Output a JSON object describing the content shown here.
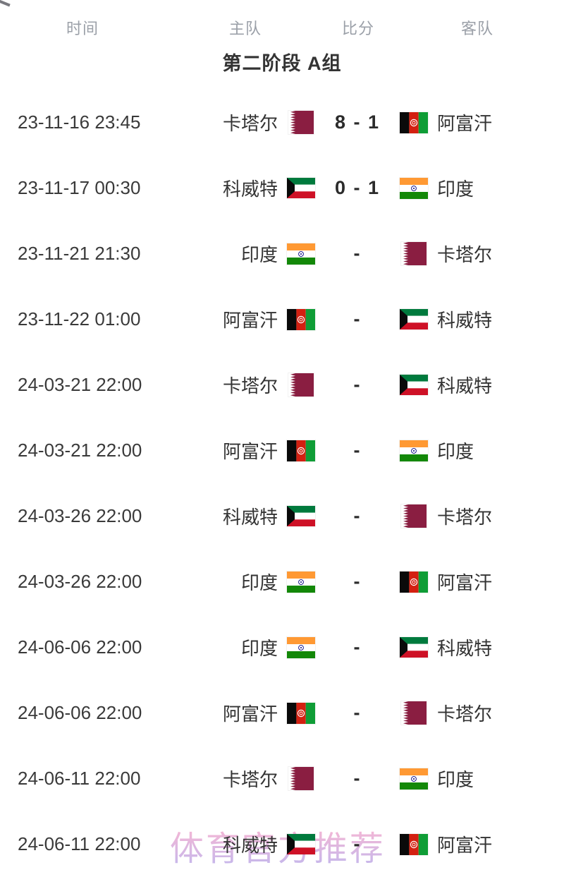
{
  "header": {
    "columns": [
      "时间",
      "主队",
      "比分",
      "客队"
    ]
  },
  "section": {
    "title": "第二阶段 A组"
  },
  "matches": [
    {
      "time": "23-11-16 23:45",
      "home": {
        "name": "卡塔尔",
        "flag": "qatar"
      },
      "score": "8 - 1",
      "away": {
        "name": "阿富汗",
        "flag": "afghanistan"
      }
    },
    {
      "time": "23-11-17 00:30",
      "home": {
        "name": "科威特",
        "flag": "kuwait"
      },
      "score": "0 - 1",
      "away": {
        "name": "印度",
        "flag": "india"
      }
    },
    {
      "time": "23-11-21 21:30",
      "home": {
        "name": "印度",
        "flag": "india"
      },
      "score": "-",
      "away": {
        "name": "卡塔尔",
        "flag": "qatar"
      }
    },
    {
      "time": "23-11-22 01:00",
      "home": {
        "name": "阿富汗",
        "flag": "afghanistan"
      },
      "score": "-",
      "away": {
        "name": "科威特",
        "flag": "kuwait"
      }
    },
    {
      "time": "24-03-21 22:00",
      "home": {
        "name": "卡塔尔",
        "flag": "qatar"
      },
      "score": "-",
      "away": {
        "name": "科威特",
        "flag": "kuwait"
      }
    },
    {
      "time": "24-03-21 22:00",
      "home": {
        "name": "阿富汗",
        "flag": "afghanistan"
      },
      "score": "-",
      "away": {
        "name": "印度",
        "flag": "india"
      }
    },
    {
      "time": "24-03-26 22:00",
      "home": {
        "name": "科威特",
        "flag": "kuwait"
      },
      "score": "-",
      "away": {
        "name": "卡塔尔",
        "flag": "qatar"
      }
    },
    {
      "time": "24-03-26 22:00",
      "home": {
        "name": "印度",
        "flag": "india"
      },
      "score": "-",
      "away": {
        "name": "阿富汗",
        "flag": "afghanistan"
      }
    },
    {
      "time": "24-06-06 22:00",
      "home": {
        "name": "印度",
        "flag": "india"
      },
      "score": "-",
      "away": {
        "name": "科威特",
        "flag": "kuwait"
      }
    },
    {
      "time": "24-06-06 22:00",
      "home": {
        "name": "阿富汗",
        "flag": "afghanistan"
      },
      "score": "-",
      "away": {
        "name": "卡塔尔",
        "flag": "qatar"
      }
    },
    {
      "time": "24-06-11 22:00",
      "home": {
        "name": "卡塔尔",
        "flag": "qatar"
      },
      "score": "-",
      "away": {
        "name": "印度",
        "flag": "india"
      }
    },
    {
      "time": "24-06-11 22:00",
      "home": {
        "name": "科威特",
        "flag": "kuwait"
      },
      "score": "-",
      "away": {
        "name": "阿富汗",
        "flag": "afghanistan"
      }
    }
  ],
  "watermark": {
    "text": "体育官方推荐",
    "color_top": "#f6b4d3",
    "color_bottom": "#c4b4ea"
  },
  "flag_colors": {
    "qatar": {
      "maroon": "#8a1e41",
      "white": "#ffffff"
    },
    "afghanistan": {
      "black": "#0a0a0a",
      "red": "#d32011",
      "green": "#0f9d36",
      "emblem": "#ffffff"
    },
    "kuwait": {
      "green": "#007a3d",
      "white": "#ffffff",
      "red": "#ce1126",
      "black": "#0a0a0a"
    },
    "india": {
      "saffron": "#ff9933",
      "white": "#ffffff",
      "green": "#138808",
      "navy": "#000080"
    }
  }
}
